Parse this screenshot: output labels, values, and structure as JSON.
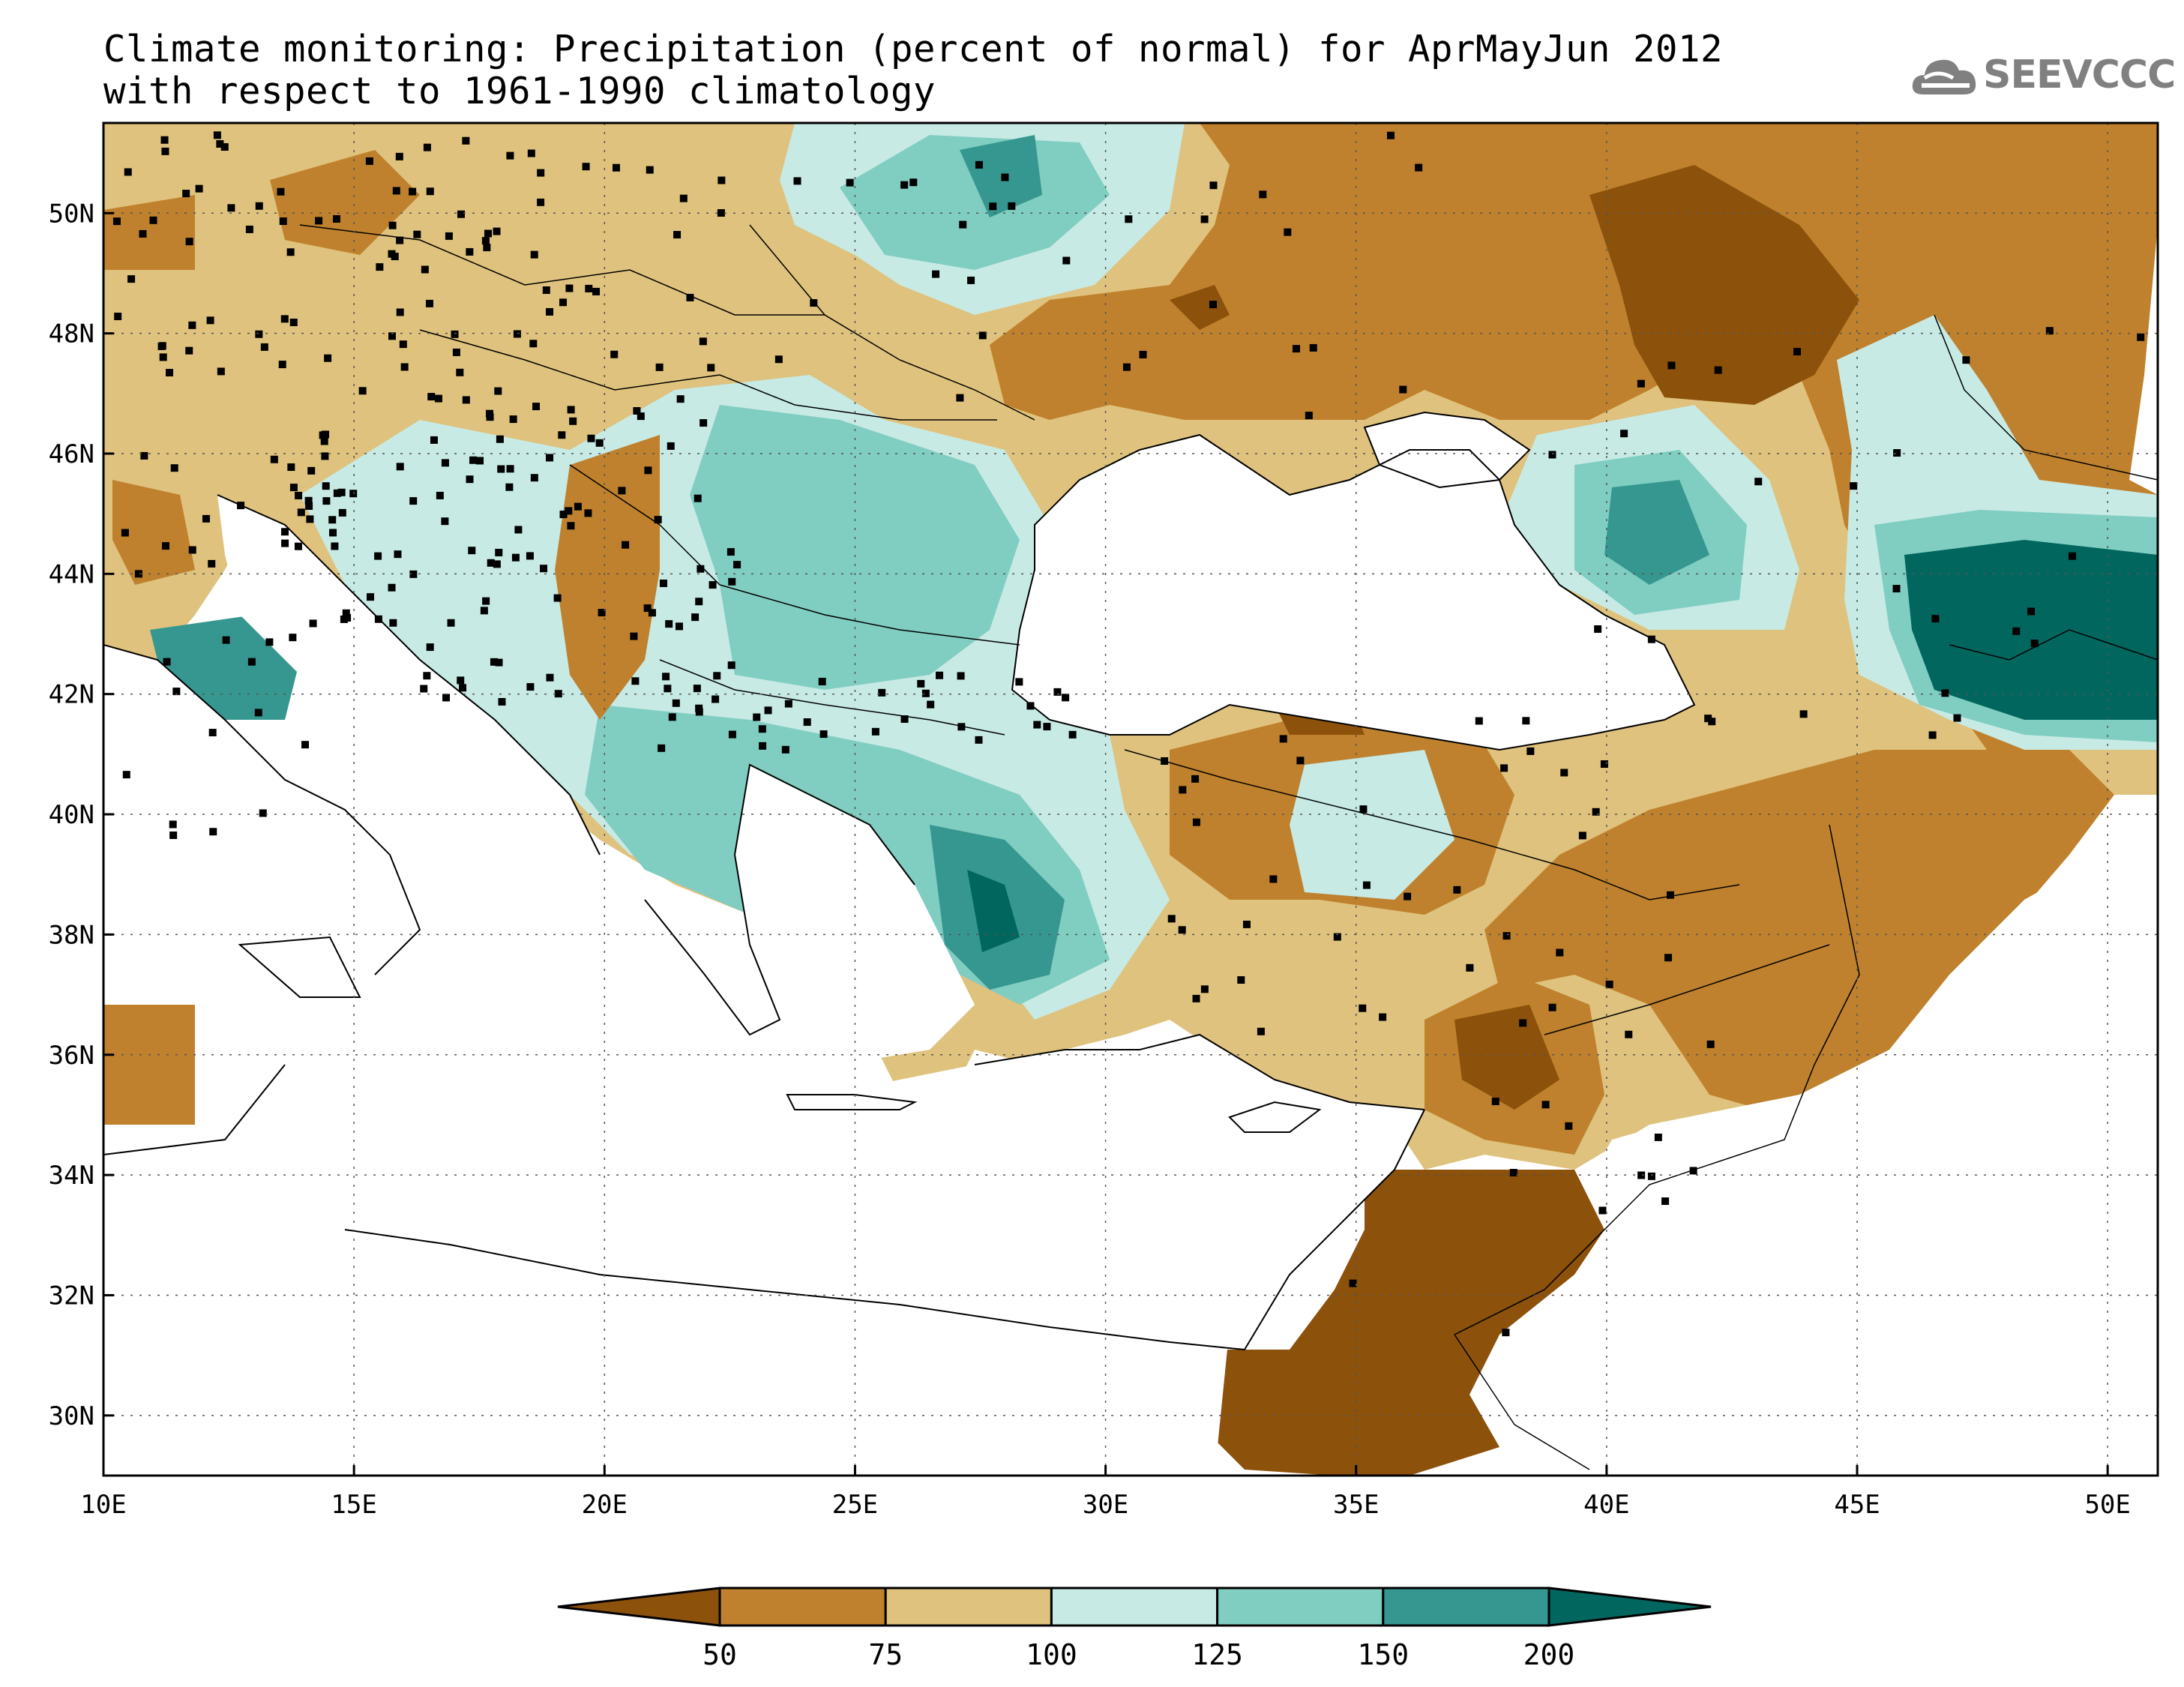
{
  "title": {
    "line1": "Climate monitoring: Precipitation (percent of normal) for AprMayJun 2012",
    "line2": "with respect to 1961-1990 climatology"
  },
  "logo": {
    "text": "SEEVCCC",
    "icon": "cloud-icon",
    "color": "#808080"
  },
  "map": {
    "lon_range": [
      10,
      51
    ],
    "lat_range": [
      29,
      51.5
    ],
    "x_ticks": [
      "10E",
      "15E",
      "20E",
      "25E",
      "30E",
      "35E",
      "40E",
      "45E",
      "50E"
    ],
    "y_ticks": [
      "30N",
      "32N",
      "34N",
      "36N",
      "38N",
      "40N",
      "42N",
      "44N",
      "46N",
      "48N",
      "50N"
    ],
    "gridlines": true
  },
  "colorbar": {
    "labels": [
      "50",
      "75",
      "100",
      "125",
      "150",
      "200"
    ],
    "colors": [
      "#8c510a",
      "#bf812d",
      "#dfc27d",
      "#c7eae5",
      "#80cdc1",
      "#35978f",
      "#01665e"
    ]
  }
}
